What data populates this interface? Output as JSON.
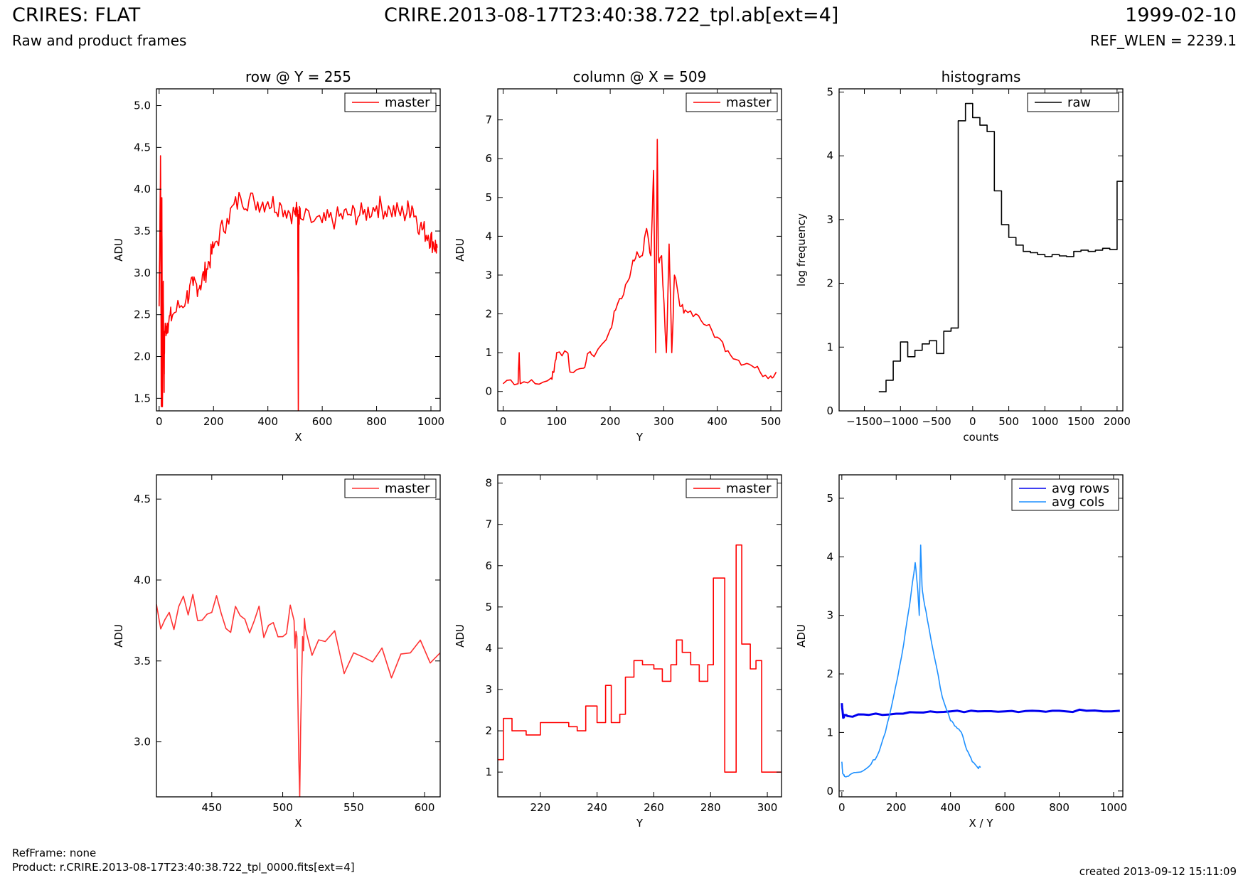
{
  "header": {
    "title": "CRIRES: FLAT",
    "subtitle": "Raw and product frames",
    "center_title": "CRIRE.2013-08-17T23:40:38.722_tpl.ab[ext=4]",
    "date": "1999-02-10",
    "ref_wlen": "REF_WLEN = 2239.1"
  },
  "footer": {
    "refframe": "RefFrame: none",
    "product": "Product: r.CRIRE.2013-08-17T23:40:38.722_tpl_0000.fits[ext=4]",
    "created": "created 2013-09-12 15:11:09"
  },
  "colors": {
    "red": "#ff0000",
    "light_red": "#ff3333",
    "black": "#000000",
    "blue": "#0000ee",
    "light_blue": "#1e90ff"
  },
  "chart_data": [
    {
      "id": "row_top",
      "type": "line",
      "title": "row @ Y = 255",
      "xlabel": "X",
      "ylabel": "ADU",
      "xlim": [
        -10,
        1034
      ],
      "ylim": [
        1.35,
        5.2
      ],
      "xticks": [
        0,
        200,
        400,
        600,
        800,
        1000
      ],
      "yticks": [
        1.5,
        2.0,
        2.5,
        3.0,
        3.5,
        4.0,
        4.5,
        5.0
      ],
      "legend_position": "top-right",
      "series": [
        {
          "name": "master",
          "color": "#ff0000",
          "x": [
            0,
            5,
            8,
            10,
            12,
            15,
            18,
            20,
            30,
            50,
            100,
            125,
            150,
            175,
            200,
            250,
            300,
            350,
            400,
            450,
            500,
            510,
            512,
            514,
            520,
            600,
            650,
            700,
            750,
            800,
            850,
            900,
            930,
            960,
            990,
            1010,
            1023
          ],
          "y": [
            2.6,
            4.4,
            1.4,
            3.9,
            1.4,
            2.9,
            1.6,
            2.3,
            2.4,
            2.5,
            2.7,
            2.85,
            2.85,
            3.05,
            3.3,
            3.65,
            3.9,
            3.85,
            3.85,
            3.8,
            3.7,
            3.75,
            1.35,
            3.7,
            3.65,
            3.6,
            3.65,
            3.7,
            3.7,
            3.8,
            3.75,
            3.7,
            3.8,
            3.55,
            3.45,
            3.35,
            3.3
          ]
        }
      ]
    },
    {
      "id": "col_top",
      "type": "line",
      "title": "column @ X = 509",
      "xlabel": "Y",
      "ylabel": "ADU",
      "xlim": [
        -10,
        520
      ],
      "ylim": [
        -0.5,
        7.8
      ],
      "xticks": [
        0,
        100,
        200,
        300,
        400,
        500
      ],
      "yticks": [
        0,
        1,
        2,
        3,
        4,
        5,
        6,
        7
      ],
      "legend_position": "top-right",
      "series": [
        {
          "name": "master",
          "color": "#ff0000",
          "x": [
            0,
            28,
            30,
            32,
            60,
            90,
            95,
            100,
            120,
            125,
            150,
            160,
            170,
            200,
            210,
            225,
            240,
            250,
            260,
            268,
            276,
            281,
            285,
            288,
            290,
            296,
            305,
            310,
            315,
            320,
            330,
            340,
            360,
            380,
            400,
            420,
            440,
            460,
            480,
            500,
            510
          ],
          "y": [
            0.2,
            0.2,
            1.0,
            0.2,
            0.2,
            0.35,
            0.5,
            1.0,
            1.0,
            0.5,
            0.6,
            1.0,
            0.9,
            1.6,
            2.1,
            2.5,
            3.2,
            3.6,
            3.5,
            4.2,
            3.5,
            5.7,
            1.0,
            6.5,
            3.4,
            3.5,
            1.0,
            3.8,
            1.0,
            3.0,
            2.2,
            2.1,
            2.0,
            1.7,
            1.4,
            1.05,
            0.8,
            0.7,
            0.5,
            0.4,
            0.5
          ]
        }
      ]
    },
    {
      "id": "hist",
      "type": "line",
      "title": "histograms",
      "xlabel": "counts",
      "ylabel": "log frequency",
      "xlim": [
        -1850,
        2080
      ],
      "ylim": [
        0,
        5.05
      ],
      "xticks": [
        -1500,
        -1000,
        -500,
        0,
        500,
        1000,
        1500,
        2000
      ],
      "yticks": [
        0,
        1,
        2,
        3,
        4,
        5
      ],
      "legend_position": "top-right",
      "series": [
        {
          "name": "raw",
          "color": "#000000",
          "step": true,
          "x": [
            -1300,
            -1200,
            -1100,
            -1000,
            -900,
            -800,
            -700,
            -600,
            -500,
            -400,
            -300,
            -200,
            -100,
            0,
            100,
            200,
            300,
            400,
            500,
            600,
            700,
            800,
            900,
            1000,
            1100,
            1200,
            1300,
            1400,
            1500,
            1600,
            1700,
            1800,
            1900,
            2000,
            2100
          ],
          "y": [
            0.3,
            0.48,
            0.78,
            1.08,
            0.85,
            0.95,
            1.05,
            1.1,
            0.9,
            1.25,
            1.3,
            4.55,
            4.82,
            4.6,
            4.48,
            4.38,
            3.45,
            2.92,
            2.72,
            2.6,
            2.5,
            2.48,
            2.45,
            2.42,
            2.45,
            2.43,
            2.42,
            2.5,
            2.52,
            2.5,
            2.52,
            2.55,
            2.53,
            3.6,
            3.6
          ]
        }
      ]
    },
    {
      "id": "row_zoom",
      "type": "line",
      "title": "",
      "xlabel": "X",
      "ylabel": "ADU",
      "xlim": [
        411,
        611
      ],
      "ylim": [
        2.66,
        4.65
      ],
      "xticks": [
        450,
        500,
        550,
        600
      ],
      "yticks": [
        3.0,
        3.5,
        4.0,
        4.5
      ],
      "legend_position": "top-right",
      "series": [
        {
          "name": "master",
          "color": "#ff3333",
          "x": [
            411,
            420,
            430,
            440,
            450,
            460,
            470,
            480,
            490,
            500,
            508,
            510,
            512,
            514,
            516,
            530,
            550,
            570,
            590,
            611
          ],
          "y": [
            3.85,
            3.8,
            3.9,
            3.75,
            3.8,
            3.7,
            3.78,
            3.75,
            3.72,
            3.65,
            3.75,
            3.65,
            2.66,
            3.65,
            3.7,
            3.62,
            3.55,
            3.58,
            3.55,
            3.55
          ]
        }
      ]
    },
    {
      "id": "col_zoom",
      "type": "line",
      "title": "",
      "xlabel": "Y",
      "ylabel": "ADU",
      "xlim": [
        205,
        305
      ],
      "ylim": [
        0.4,
        8.2
      ],
      "xticks": [
        220,
        240,
        260,
        280,
        300
      ],
      "yticks": [
        1,
        2,
        3,
        4,
        5,
        6,
        7,
        8
      ],
      "legend_position": "top-right",
      "series": [
        {
          "name": "master",
          "color": "#ff0000",
          "step": true,
          "x": [
            205,
            207,
            210,
            215,
            220,
            225,
            230,
            233,
            236,
            240,
            243,
            245,
            248,
            250,
            253,
            256,
            260,
            263,
            266,
            268,
            270,
            273,
            276,
            279,
            281,
            285,
            287,
            289,
            291,
            294,
            296,
            298,
            305
          ],
          "y": [
            1.3,
            2.3,
            2.0,
            1.9,
            2.2,
            2.2,
            2.1,
            2.0,
            2.6,
            2.2,
            3.1,
            2.2,
            2.4,
            3.3,
            3.7,
            3.6,
            3.5,
            3.2,
            3.6,
            4.2,
            3.9,
            3.6,
            3.2,
            3.6,
            5.7,
            1.0,
            1.0,
            6.5,
            4.1,
            3.5,
            3.7,
            1.0,
            1.0
          ]
        }
      ]
    },
    {
      "id": "avg",
      "type": "line",
      "title": "",
      "xlabel": "X / Y",
      "ylabel": "ADU",
      "xlim": [
        -10,
        1034
      ],
      "ylim": [
        -0.1,
        5.4
      ],
      "xticks": [
        0,
        200,
        400,
        600,
        800,
        1000
      ],
      "yticks": [
        0,
        1,
        2,
        3,
        4,
        5
      ],
      "legend_position": "top-right",
      "series": [
        {
          "name": "avg rows",
          "color": "#0000ee",
          "x": [
            0,
            5,
            10,
            20,
            100,
            200,
            300,
            400,
            500,
            600,
            700,
            800,
            900,
            1023
          ],
          "y": [
            1.5,
            1.25,
            1.3,
            1.28,
            1.3,
            1.32,
            1.34,
            1.36,
            1.36,
            1.36,
            1.37,
            1.37,
            1.37,
            1.37
          ]
        },
        {
          "name": "avg cols",
          "color": "#1e90ff",
          "x": [
            0,
            3,
            10,
            30,
            60,
            100,
            130,
            160,
            190,
            220,
            250,
            270,
            280,
            285,
            290,
            295,
            300,
            320,
            340,
            370,
            400,
            420,
            440,
            460,
            480,
            500,
            510
          ],
          "y": [
            0.5,
            0.3,
            0.25,
            0.28,
            0.32,
            0.42,
            0.6,
            1.0,
            1.6,
            2.3,
            3.2,
            3.9,
            3.4,
            3.0,
            4.2,
            3.5,
            3.3,
            2.8,
            2.3,
            1.6,
            1.2,
            1.1,
            1.0,
            0.7,
            0.5,
            0.4,
            0.4
          ]
        }
      ]
    }
  ]
}
